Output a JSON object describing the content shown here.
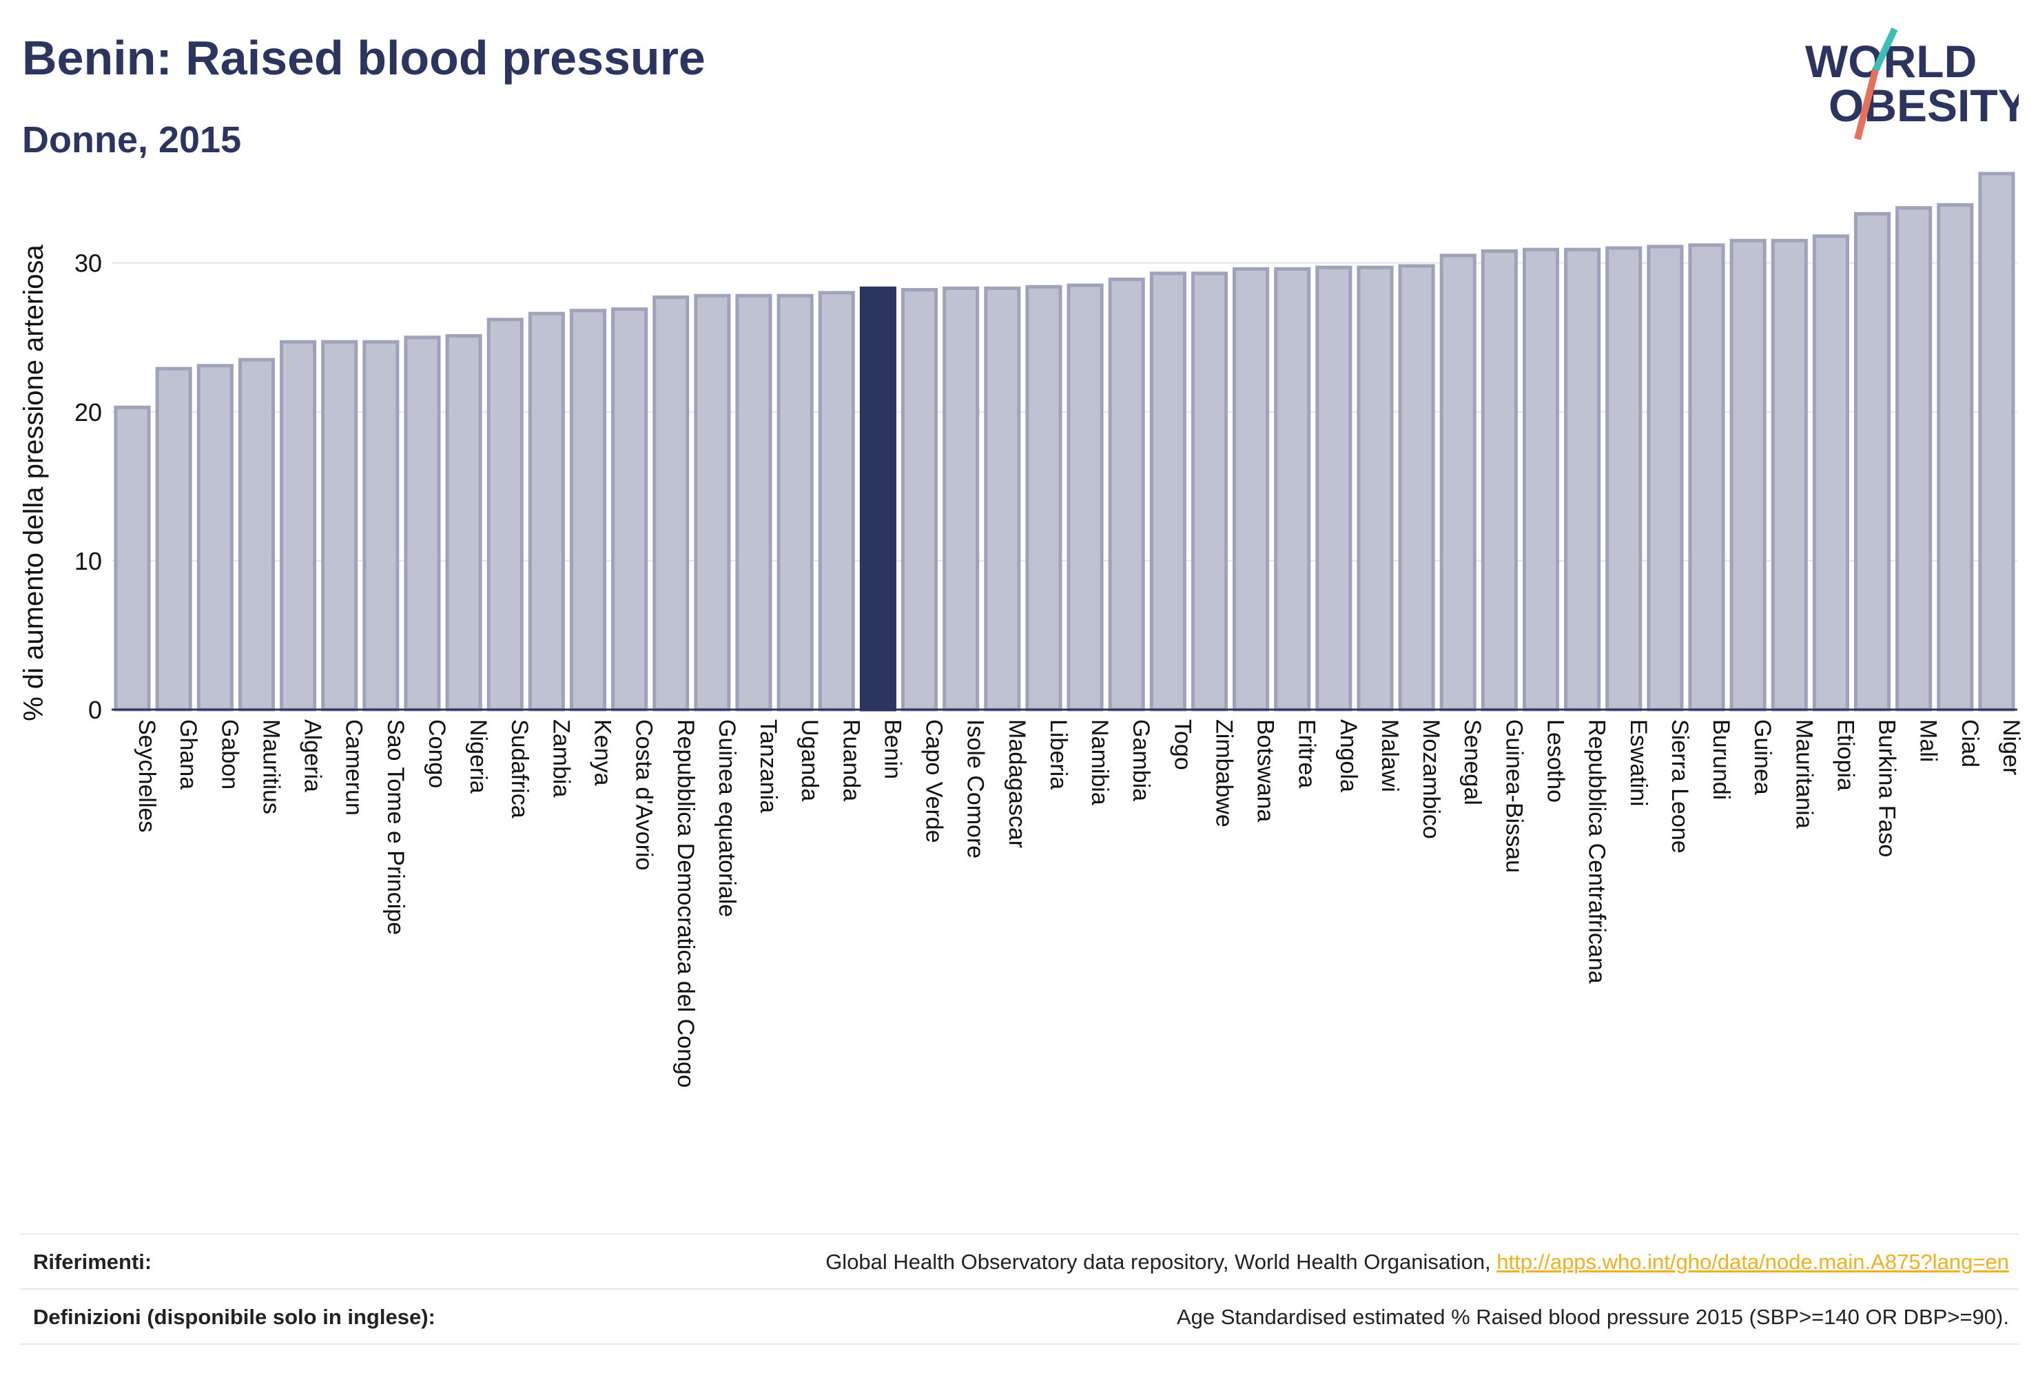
{
  "header": {
    "title": "Benin: Raised blood pressure",
    "subtitle": "Donne, 2015"
  },
  "logo": {
    "line1": "WORLD",
    "line2": "OBESITY",
    "accent_teal": "#3dbdb6",
    "accent_coral": "#e8705a"
  },
  "colors": {
    "bar": "#bfc2d0",
    "bar_border": "#9ea3ba",
    "highlight": "#2b3560",
    "text": "#2b3560",
    "link": "#f2b01e"
  },
  "chart_data": {
    "type": "bar",
    "title": "Benin: Raised blood pressure",
    "subtitle": "Donne, 2015",
    "ylabel": "% di aumento della pressione arteriosa",
    "xlabel": "",
    "ylim": [
      0,
      36
    ],
    "yticks": [
      0,
      10,
      20,
      30
    ],
    "grid": true,
    "highlight": "Benin",
    "categories": [
      "Seychelles",
      "Ghana",
      "Gabon",
      "Mauritius",
      "Algeria",
      "Camerun",
      "Sao Tome e Principe",
      "Congo",
      "Nigeria",
      "Sudafrica",
      "Zambia",
      "Kenya",
      "Costa d'Avorio",
      "Repubblica Democratica del Congo",
      "Guinea equatoriale",
      "Tanzania",
      "Uganda",
      "Ruanda",
      "Benin",
      "Capo Verde",
      "Isole Comore",
      "Madagascar",
      "Liberia",
      "Namibia",
      "Gambia",
      "Togo",
      "Zimbabwe",
      "Botswana",
      "Eritrea",
      "Angola",
      "Malawi",
      "Mozambico",
      "Senegal",
      "Guinea-Bissau",
      "Lesotho",
      "Repubblica Centrafricana",
      "Eswatini",
      "Sierra Leone",
      "Burundi",
      "Guinea",
      "Mauritania",
      "Etiopia",
      "Burkina Faso",
      "Mali",
      "Ciad",
      "Niger"
    ],
    "values": [
      20.3,
      22.9,
      23.1,
      23.5,
      24.7,
      24.7,
      24.7,
      25.0,
      25.1,
      26.2,
      26.6,
      26.8,
      26.9,
      27.7,
      27.8,
      27.8,
      27.8,
      28.0,
      28.3,
      28.2,
      28.3,
      28.3,
      28.4,
      28.5,
      28.9,
      29.3,
      29.3,
      29.6,
      29.6,
      29.7,
      29.7,
      29.8,
      30.5,
      30.8,
      30.9,
      30.9,
      31.0,
      31.1,
      31.2,
      31.5,
      31.5,
      31.8,
      33.3,
      33.7,
      33.9,
      36.0
    ]
  },
  "footer": {
    "references_label": "Riferimenti:",
    "references_text": "Global Health Observatory data repository, World Health Organisation, ",
    "references_link": "http://apps.who.int/gho/data/node.main.A875?lang=en",
    "definitions_label": "Definizioni (disponibile solo in inglese):",
    "definitions_text": "Age Standardised estimated % Raised blood pressure 2015 (SBP>=140 OR DBP>=90)."
  }
}
